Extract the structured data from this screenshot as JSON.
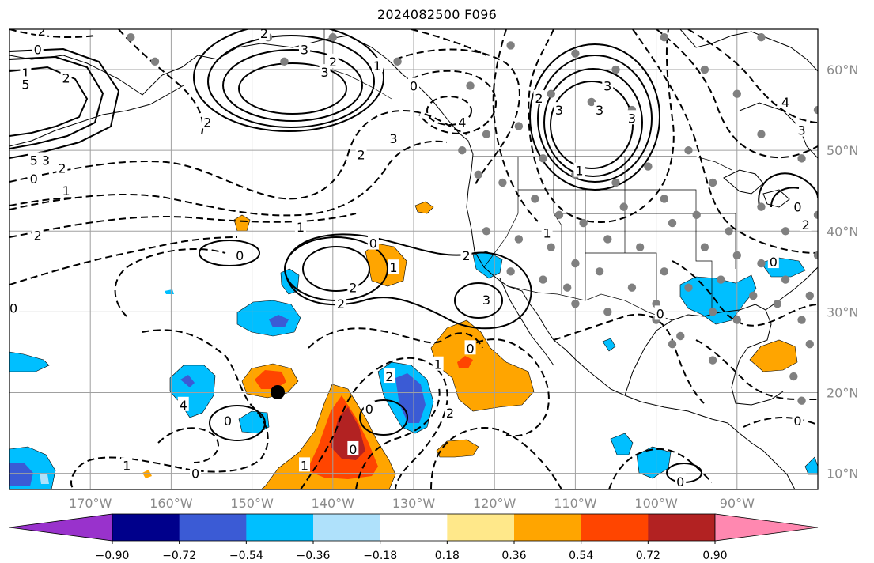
{
  "title": "2024082500 F096",
  "map": {
    "lon_range": [
      -180,
      -80
    ],
    "lat_range": [
      8,
      65
    ],
    "lon_ticks": [
      "170°W",
      "160°W",
      "150°W",
      "140°W",
      "130°W",
      "120°W",
      "110°W",
      "100°W",
      "90°W"
    ],
    "lat_ticks": [
      "60°N",
      "50°N",
      "40°N",
      "30°N",
      "20°N",
      "10°N"
    ],
    "grid": true,
    "colors": {
      "grid": "#a0a0a0",
      "coast": "#000000",
      "stations": "#808080",
      "marker": "#000000"
    }
  },
  "colorbar": {
    "ticks": [
      "−0.90",
      "−0.72",
      "−0.54",
      "−0.36",
      "−0.18",
      "0.18",
      "0.36",
      "0.54",
      "0.72",
      "0.90"
    ],
    "colors": [
      "#9932cc",
      "#00008b",
      "#3b5bd5",
      "#00bfff",
      "#afe1fb",
      "#ffffff",
      "#ffe88a",
      "#ffa500",
      "#ff4500",
      "#b22222",
      "#ff88b0"
    ]
  },
  "contour_labels": [
    {
      "t": "2",
      "lon": -176.0,
      "lat": 64.8
    },
    {
      "t": "1",
      "lon": -178.0,
      "lat": 59.6
    },
    {
      "t": "0",
      "lon": -176.5,
      "lat": 62.5
    },
    {
      "t": "5",
      "lon": -178.0,
      "lat": 58.2
    },
    {
      "t": "2",
      "lon": -173.0,
      "lat": 59.0
    },
    {
      "t": "5",
      "lon": -177.0,
      "lat": 48.8
    },
    {
      "t": "3",
      "lon": -175.5,
      "lat": 48.8
    },
    {
      "t": "2",
      "lon": -173.5,
      "lat": 47.8
    },
    {
      "t": "0",
      "lon": -177.0,
      "lat": 46.5
    },
    {
      "t": "1",
      "lon": -173.0,
      "lat": 45.0
    },
    {
      "t": "2",
      "lon": -176.5,
      "lat": 39.5
    },
    {
      "t": "2",
      "lon": -155.5,
      "lat": 53.5
    },
    {
      "t": "2",
      "lon": -148.5,
      "lat": 64.5
    },
    {
      "t": "2",
      "lon": -140.0,
      "lat": 61.0
    },
    {
      "t": "3",
      "lon": -143.5,
      "lat": 62.5
    },
    {
      "t": "3",
      "lon": -141.0,
      "lat": 59.7
    },
    {
      "t": "1",
      "lon": -134.5,
      "lat": 60.5
    },
    {
      "t": "0",
      "lon": -130.0,
      "lat": 58.0
    },
    {
      "t": "2",
      "lon": -136.5,
      "lat": 49.5
    },
    {
      "t": "3",
      "lon": -132.5,
      "lat": 51.5
    },
    {
      "t": "4",
      "lon": -124.0,
      "lat": 53.5
    },
    {
      "t": "1",
      "lon": -144.0,
      "lat": 40.5
    },
    {
      "t": "0",
      "lon": -151.5,
      "lat": 37.0
    },
    {
      "t": "0",
      "lon": -135.0,
      "lat": 38.5
    },
    {
      "t": "1",
      "lon": -132.5,
      "lat": 35.5
    },
    {
      "t": "2",
      "lon": -137.5,
      "lat": 33.0
    },
    {
      "t": "2",
      "lon": -139.0,
      "lat": 31.0
    },
    {
      "t": "3",
      "lon": -121.0,
      "lat": 31.5
    },
    {
      "t": "0",
      "lon": -123.0,
      "lat": 25.5
    },
    {
      "t": "1",
      "lon": -127.0,
      "lat": 23.5
    },
    {
      "t": "2",
      "lon": -133.0,
      "lat": 22.0
    },
    {
      "t": "0",
      "lon": -135.5,
      "lat": 18.0
    },
    {
      "t": "2",
      "lon": -125.5,
      "lat": 17.5
    },
    {
      "t": "0",
      "lon": -137.5,
      "lat": 13.0
    },
    {
      "t": "1",
      "lon": -143.5,
      "lat": 11.0
    },
    {
      "t": "0",
      "lon": -153.0,
      "lat": 16.5
    },
    {
      "t": "0",
      "lon": -157.0,
      "lat": 10.0
    },
    {
      "t": "1",
      "lon": -165.5,
      "lat": 11.0
    },
    {
      "t": "4",
      "lon": -158.5,
      "lat": 18.5
    },
    {
      "t": "0",
      "lon": -179.5,
      "lat": 30.5
    },
    {
      "t": "0",
      "lon": -85.5,
      "lat": 36.2
    },
    {
      "t": "1",
      "lon": -109.5,
      "lat": 47.5
    },
    {
      "t": "3",
      "lon": -112.0,
      "lat": 55.0
    },
    {
      "t": "3",
      "lon": -106.0,
      "lat": 58.0
    },
    {
      "t": "3",
      "lon": -107.0,
      "lat": 55.0
    },
    {
      "t": "2",
      "lon": -114.5,
      "lat": 56.5
    },
    {
      "t": "3",
      "lon": -103.0,
      "lat": 54.0
    },
    {
      "t": "1",
      "lon": -113.5,
      "lat": 39.8
    },
    {
      "t": "2",
      "lon": -81.5,
      "lat": 40.8
    },
    {
      "t": "3",
      "lon": -82.0,
      "lat": 52.5
    },
    {
      "t": "4",
      "lon": -84.0,
      "lat": 56.0
    },
    {
      "t": "0",
      "lon": -82.5,
      "lat": 43.0
    },
    {
      "t": "0",
      "lon": -99.5,
      "lat": 29.8
    },
    {
      "t": "0",
      "lon": -97.0,
      "lat": 9.0
    },
    {
      "t": "0",
      "lon": -82.5,
      "lat": 16.5
    },
    {
      "t": "2",
      "lon": -123.5,
      "lat": 37.0
    }
  ]
}
